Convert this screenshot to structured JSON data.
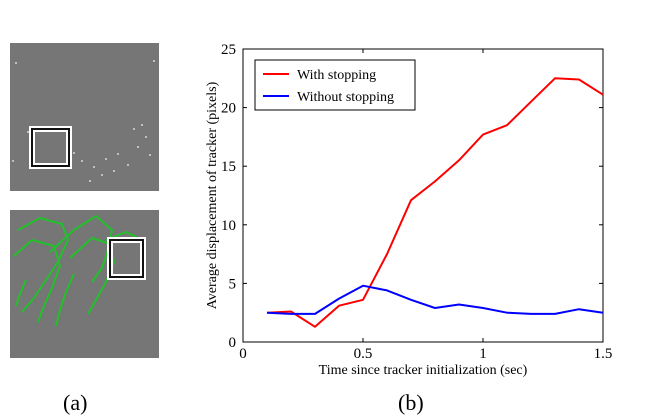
{
  "captions": {
    "a": "(a)",
    "b": "(b)"
  },
  "panel_a": {
    "images": [
      "top",
      "bottom"
    ],
    "track_color": "#22c02a",
    "box_color": "#ffffff"
  },
  "chart_data": {
    "type": "line",
    "title": "",
    "xlabel": "Time since tracker initialization (sec)",
    "ylabel": "Average displacement of tracker (pixels)",
    "xlim": [
      0,
      1.5
    ],
    "ylim": [
      0,
      25
    ],
    "xticks": [
      0,
      0.5,
      1,
      1.5
    ],
    "xtick_labels": [
      "0",
      "0.5",
      "1",
      "1.5"
    ],
    "yticks": [
      0,
      5,
      10,
      15,
      20,
      25
    ],
    "ytick_labels": [
      "0",
      "5",
      "10",
      "15",
      "20",
      "25"
    ],
    "grid": false,
    "legend_position": "top-left",
    "series": [
      {
        "name": "With stopping",
        "color": "#ff0000",
        "x": [
          0.1,
          0.2,
          0.3,
          0.4,
          0.5,
          0.6,
          0.7,
          0.8,
          0.9,
          1.0,
          1.1,
          1.2,
          1.3,
          1.4,
          1.5
        ],
        "y": [
          2.5,
          2.6,
          1.3,
          3.1,
          3.6,
          7.5,
          12.1,
          13.7,
          15.5,
          17.7,
          18.5,
          20.5,
          22.5,
          22.4,
          21.1
        ]
      },
      {
        "name": "Without stopping",
        "color": "#0000ff",
        "x": [
          0.1,
          0.2,
          0.3,
          0.4,
          0.5,
          0.6,
          0.7,
          0.8,
          0.9,
          1.0,
          1.1,
          1.2,
          1.3,
          1.4,
          1.5
        ],
        "y": [
          2.5,
          2.4,
          2.4,
          3.7,
          4.8,
          4.4,
          3.6,
          2.9,
          3.2,
          2.9,
          2.5,
          2.4,
          2.4,
          2.8,
          2.5
        ]
      }
    ]
  }
}
